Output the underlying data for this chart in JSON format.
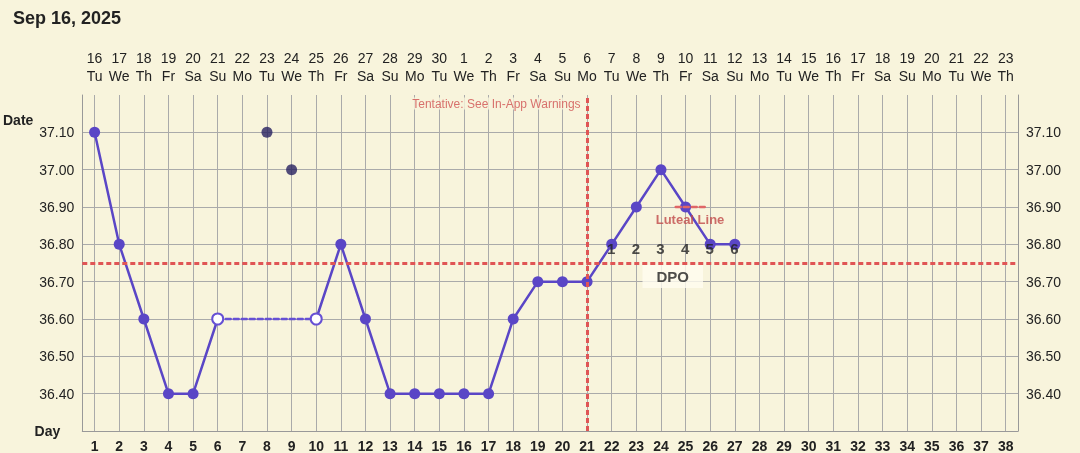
{
  "chart_data": {
    "type": "line",
    "title": "Sep 16, 2025",
    "xlabel": "Day",
    "x2label": "Date",
    "x": [
      1,
      2,
      3,
      4,
      5,
      6,
      7,
      8,
      9,
      10,
      11,
      12,
      13,
      14,
      15,
      16,
      17,
      18,
      19,
      20,
      21,
      22,
      23,
      24,
      25,
      26,
      27
    ],
    "series": [
      {
        "color": "#5a46c6",
        "values": [
          37.1,
          36.8,
          36.6,
          36.4,
          36.4,
          36.6,
          null,
          null,
          null,
          36.6,
          36.8,
          36.6,
          36.4,
          36.4,
          36.4,
          36.4,
          36.4,
          36.6,
          36.7,
          36.7,
          36.7,
          36.8,
          36.9,
          37.0,
          36.9,
          36.8,
          36.8
        ]
      },
      {
        "color": "#6650d4",
        "x": [
          6,
          10
        ],
        "values": [
          36.6,
          36.6
        ],
        "line_style": "dashed",
        "marker": "circle"
      },
      {
        "type": "scatter",
        "color": "#272060",
        "x": [
          8,
          9
        ],
        "values": [
          37.1,
          37.0
        ]
      },
      {
        "color": "#e06666",
        "x": [
          24.6,
          25.8
        ],
        "values": [
          36.9,
          36.9
        ],
        "line_style": "dashed",
        "marker": "none"
      }
    ],
    "marker": "circle",
    "line_style": "solid",
    "xlim": [
      0.5,
      38.5
    ],
    "xticks": [
      1,
      2,
      3,
      4,
      5,
      6,
      7,
      8,
      9,
      10,
      11,
      12,
      13,
      14,
      15,
      16,
      17,
      18,
      19,
      20,
      21,
      22,
      23,
      24,
      25,
      26,
      27,
      28,
      29,
      30,
      31,
      32,
      33,
      34,
      35,
      36,
      37,
      38
    ],
    "x2lim": [
      "2025-09-15T12:00",
      "2025-10-23T12:00"
    ],
    "x2ticks": [
      {
        "value": "2025-09-16",
        "label": "16\nTu"
      },
      {
        "value": "2025-09-17",
        "label": "17\nWe"
      },
      {
        "value": "2025-09-18",
        "label": "18\nTh"
      },
      {
        "value": "2025-09-19",
        "label": "19\nFr"
      },
      {
        "value": "2025-09-20",
        "label": "20\nSa"
      },
      {
        "value": "2025-09-21",
        "label": "21\nSu"
      },
      {
        "value": "2025-09-22",
        "label": "22\nMo"
      },
      {
        "value": "2025-09-23",
        "label": "23\nTu"
      },
      {
        "value": "2025-09-24",
        "label": "24\nWe"
      },
      {
        "value": "2025-09-25",
        "label": "25\nTh"
      },
      {
        "value": "2025-09-26",
        "label": "26\nFr"
      },
      {
        "value": "2025-09-27",
        "label": "27\nSa"
      },
      {
        "value": "2025-09-28",
        "label": "28\nSu"
      },
      {
        "value": "2025-09-29",
        "label": "29\nMo"
      },
      {
        "value": "2025-09-30",
        "label": "30\nTu"
      },
      {
        "value": "2025-10-01",
        "label": "1\nWe"
      },
      {
        "value": "2025-10-02",
        "label": "2\nTh"
      },
      {
        "value": "2025-10-03",
        "label": "3\nFr"
      },
      {
        "value": "2025-10-04",
        "label": "4\nSa"
      },
      {
        "value": "2025-10-05",
        "label": "5\nSu"
      },
      {
        "value": "2025-10-06",
        "label": "6\nMo"
      },
      {
        "value": "2025-10-07",
        "label": "7\nTu"
      },
      {
        "value": "2025-10-08",
        "label": "8\nWe"
      },
      {
        "value": "2025-10-09",
        "label": "9\nTh"
      },
      {
        "value": "2025-10-10",
        "label": "10\nFr"
      },
      {
        "value": "2025-10-11",
        "label": "11\nSa"
      },
      {
        "value": "2025-10-12",
        "label": "12\nSu"
      },
      {
        "value": "2025-10-13",
        "label": "13\nMo"
      },
      {
        "value": "2025-10-14",
        "label": "14\nTu"
      },
      {
        "value": "2025-10-15",
        "label": "15\nWe"
      },
      {
        "value": "2025-10-16",
        "label": "16\nTh"
      },
      {
        "value": "2025-10-17",
        "label": "17\nFr"
      },
      {
        "value": "2025-10-18",
        "label": "18\nSa"
      },
      {
        "value": "2025-10-19",
        "label": "19\nSu"
      },
      {
        "value": "2025-10-20",
        "label": "20\nMo"
      },
      {
        "value": "2025-10-21",
        "label": "21\nTu"
      },
      {
        "value": "2025-10-22",
        "label": "22\nWe"
      },
      {
        "value": "2025-10-23",
        "label": "23\nTh"
      }
    ],
    "ylim": [
      36.3,
      37.2
    ],
    "yticks": [
      {
        "value": 36.4,
        "label": "36.40"
      },
      {
        "value": 36.5,
        "label": "36.50"
      },
      {
        "value": 36.6,
        "label": "36.60"
      },
      {
        "value": 36.7,
        "label": "36.70"
      },
      {
        "value": 36.8,
        "label": "36.80"
      },
      {
        "value": 36.9,
        "label": "36.90"
      },
      {
        "value": 37.0,
        "label": "37.00"
      },
      {
        "value": 37.1,
        "label": "37.10"
      }
    ],
    "y2lim": [
      36.3,
      37.2
    ],
    "y2ticks": [
      {
        "value": 36.4,
        "label": "36.40"
      },
      {
        "value": 36.5,
        "label": "36.50"
      },
      {
        "value": 36.6,
        "label": "36.60"
      },
      {
        "value": 36.7,
        "label": "36.70"
      },
      {
        "value": 36.8,
        "label": "36.80"
      },
      {
        "value": 36.9,
        "label": "36.90"
      },
      {
        "value": 37.0,
        "label": "37.00"
      },
      {
        "value": 37.1,
        "label": "37.10"
      }
    ],
    "ref_lines": [
      {
        "axis": "x",
        "value": 21,
        "label": "Tentative: See In-App Warnings",
        "color": "#e05555",
        "line_style": "dashed"
      },
      {
        "axis": "y",
        "value": 36.75,
        "color": "#e05555",
        "line_style": "dashed"
      }
    ],
    "annotations": [
      "1",
      "2",
      "3",
      "4",
      "5",
      "6",
      {
        "text": "Luteal Line",
        "x": 25.2,
        "y": 36.9
      },
      "DPO"
    ],
    "grid": true
  }
}
